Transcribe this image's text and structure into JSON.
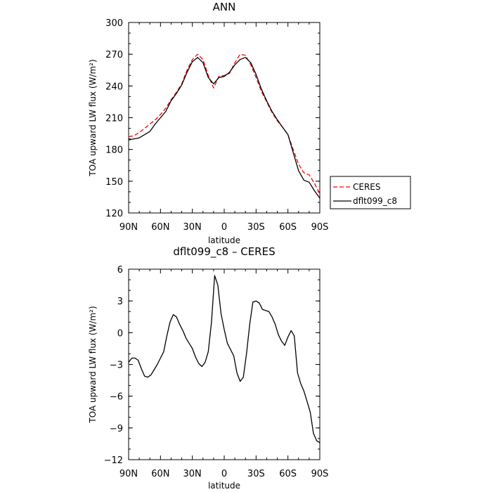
{
  "chart_data": [
    {
      "type": "line",
      "title": "ANN",
      "xlabel": "latitude",
      "ylabel": "TOA upward LW flux (W/m²)",
      "xlim": [
        90,
        -90
      ],
      "ylim": [
        120,
        300
      ],
      "x_ticks": [
        90,
        60,
        30,
        0,
        -30,
        -60,
        -90
      ],
      "x_tick_labels": [
        "90N",
        "60N",
        "30N",
        "0",
        "30S",
        "60S",
        "90S"
      ],
      "y_ticks": [
        120,
        150,
        180,
        210,
        240,
        270,
        300
      ],
      "y_tick_labels": [
        "120",
        "150",
        "180",
        "210",
        "240",
        "270",
        "300"
      ],
      "legend_position": "right",
      "series": [
        {
          "name": "CERES",
          "color": "#ff0000",
          "dash": true,
          "x": [
            90,
            85,
            80,
            75,
            70,
            65,
            60,
            55,
            50,
            45,
            40,
            35,
            30,
            25,
            20,
            15,
            10,
            5,
            0,
            -5,
            -10,
            -15,
            -20,
            -25,
            -30,
            -35,
            -40,
            -45,
            -50,
            -55,
            -60,
            -65,
            -70,
            -75,
            -80,
            -85,
            -90
          ],
          "values": [
            192,
            193,
            196,
            200,
            204,
            208,
            213,
            219,
            227,
            234,
            242,
            255,
            265,
            270,
            265,
            250,
            238,
            249,
            250,
            252,
            262,
            270,
            269,
            260,
            248,
            235,
            225,
            215,
            207,
            201,
            194,
            180,
            166,
            158,
            156,
            148,
            138
          ]
        },
        {
          "name": "dflt099_c8",
          "color": "#000000",
          "dash": false,
          "x": [
            90,
            85,
            80,
            75,
            70,
            65,
            60,
            55,
            50,
            45,
            40,
            35,
            30,
            25,
            20,
            15,
            10,
            5,
            0,
            -5,
            -10,
            -15,
            -20,
            -25,
            -30,
            -35,
            -40,
            -45,
            -50,
            -55,
            -60,
            -65,
            -70,
            -75,
            -80,
            -85,
            -90
          ],
          "values": [
            189,
            190,
            191,
            194,
            197,
            204,
            210,
            216,
            226,
            233,
            241,
            253,
            263,
            267,
            262,
            248,
            242,
            248,
            249,
            253,
            260,
            265,
            267,
            262,
            251,
            237,
            226,
            216,
            208,
            201,
            194,
            177,
            160,
            151,
            149,
            141,
            134
          ]
        }
      ]
    },
    {
      "type": "line",
      "title": "dflt099_c8 – CERES",
      "xlabel": "latitude",
      "ylabel": "TOA upward LW flux (W/m²)",
      "xlim": [
        90,
        -90
      ],
      "ylim": [
        -12,
        6
      ],
      "x_ticks": [
        90,
        60,
        30,
        0,
        -30,
        -60,
        -90
      ],
      "x_tick_labels": [
        "90N",
        "60N",
        "30N",
        "0",
        "30S",
        "60S",
        "90S"
      ],
      "y_ticks": [
        -12,
        -9,
        -6,
        -3,
        0,
        3,
        6
      ],
      "y_tick_labels": [
        "−12",
        "−9",
        "−6",
        "−3",
        "0",
        "3",
        "6"
      ],
      "series": [
        {
          "color": "#000000",
          "x": [
            90,
            87,
            84,
            81,
            78,
            75,
            72,
            69,
            66,
            63,
            60,
            57,
            54,
            51,
            48,
            45,
            42,
            39,
            36,
            33,
            30,
            27,
            24,
            21,
            18,
            15,
            12,
            9,
            6,
            3,
            0,
            -3,
            -6,
            -9,
            -12,
            -15,
            -18,
            -21,
            -24,
            -27,
            -30,
            -33,
            -36,
            -39,
            -42,
            -45,
            -48,
            -51,
            -54,
            -57,
            -60,
            -63,
            -66,
            -69,
            -72,
            -75,
            -78,
            -81,
            -84,
            -87,
            -90
          ],
          "values": [
            -2.8,
            -2.4,
            -2.4,
            -2.6,
            -3.4,
            -4.1,
            -4.2,
            -4.0,
            -3.5,
            -3.0,
            -2.4,
            -1.8,
            -0.3,
            1.0,
            1.7,
            1.5,
            0.8,
            0.2,
            -0.5,
            -1.0,
            -1.5,
            -2.3,
            -2.9,
            -3.2,
            -2.8,
            -1.8,
            1.0,
            5.4,
            4.5,
            1.8,
            0.3,
            -1.0,
            -1.6,
            -2.2,
            -3.8,
            -4.6,
            -4.2,
            -2.0,
            0.8,
            2.9,
            3.0,
            2.8,
            2.2,
            2.1,
            2.0,
            1.5,
            0.8,
            -0.2,
            -0.8,
            -1.2,
            -0.4,
            0.2,
            -0.3,
            -3.8,
            -4.8,
            -5.5,
            -6.5,
            -7.5,
            -9.5,
            -10.2,
            -10.4
          ]
        }
      ]
    }
  ]
}
